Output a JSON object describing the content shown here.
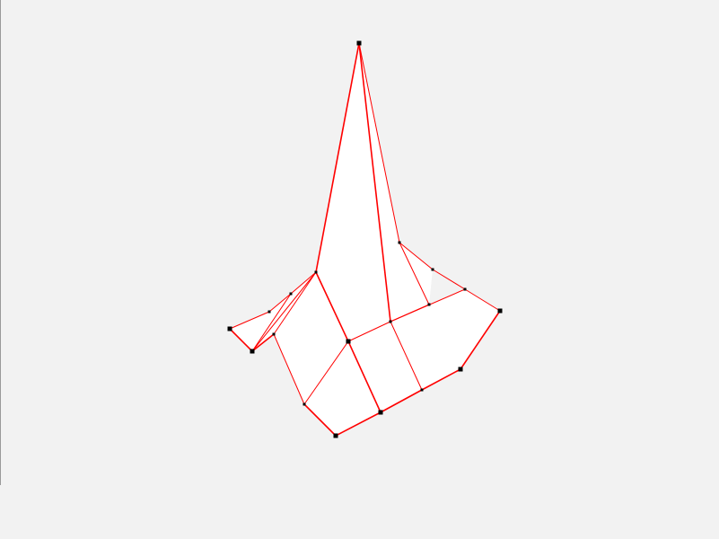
{
  "scene": {
    "background_color": "#f2f2f2",
    "face_color": "#ffffff",
    "edge_color": "#ff0000",
    "vertex_color": "#000000",
    "object": "wireframe-mesh-surface"
  }
}
